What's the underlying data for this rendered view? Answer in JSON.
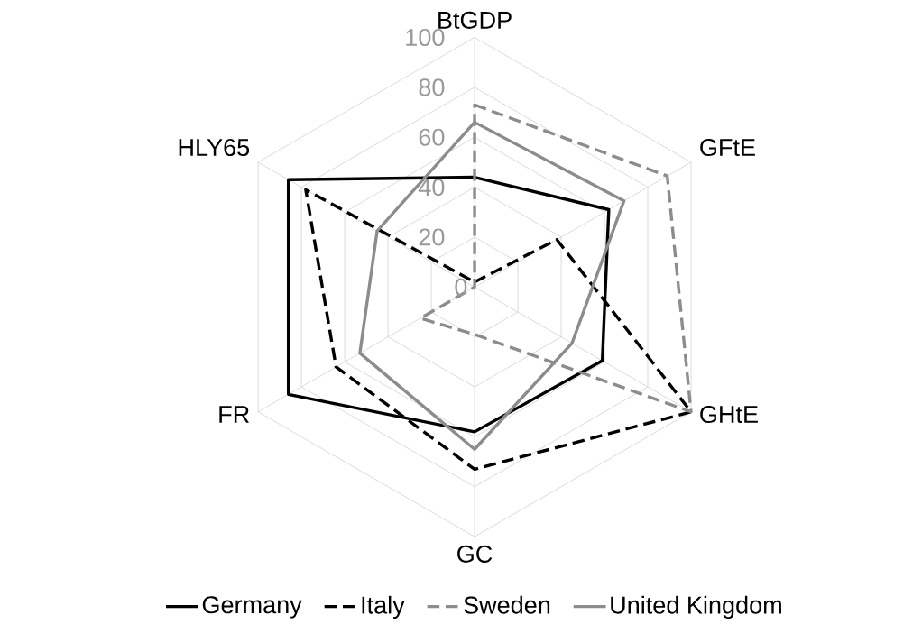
{
  "chart_data": {
    "type": "radar",
    "categories": [
      "BtGDP",
      "GFtE",
      "GHtE",
      "GC",
      "FR",
      "HLY65"
    ],
    "series": [
      {
        "name": "Germany",
        "color": "#000000",
        "line_style": "solid",
        "values": [
          44,
          62,
          59,
          58,
          86,
          86
        ]
      },
      {
        "name": "Italy",
        "color": "#000000",
        "line_style": "dashed",
        "values": [
          2,
          38,
          100,
          73,
          64,
          78
        ]
      },
      {
        "name": "Sweden",
        "color": "#8c8c8c",
        "line_style": "dashed",
        "values": [
          73,
          89,
          100,
          19,
          25,
          0
        ]
      },
      {
        "name": "United Kingdom",
        "color": "#8c8c8c",
        "line_style": "solid",
        "values": [
          66,
          69,
          45,
          65,
          53,
          45
        ]
      }
    ],
    "ylim": [
      0,
      100
    ],
    "yticks": [
      0,
      20,
      40,
      60,
      80,
      100
    ],
    "grid": true,
    "legend": "bottom"
  }
}
